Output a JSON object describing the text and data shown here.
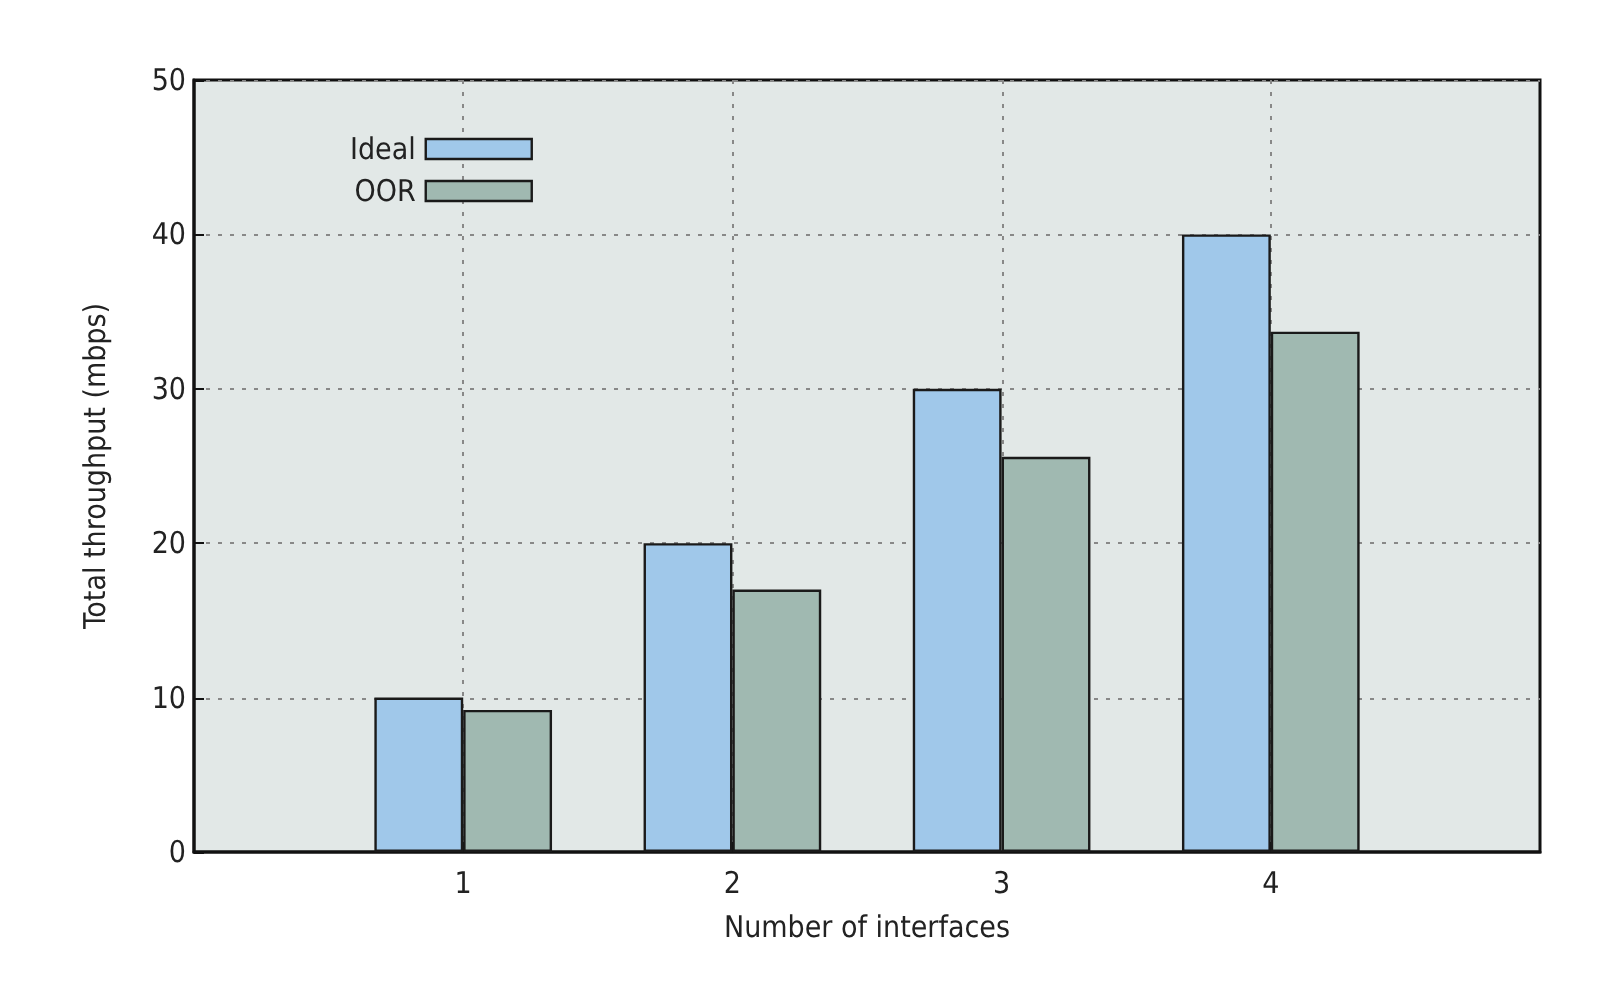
{
  "chart_data": {
    "type": "bar",
    "xlabel": "Number of interfaces",
    "ylabel": "Total throughput (mbps)",
    "x": [
      1,
      2,
      3,
      4
    ],
    "xlim": [
      0,
      5
    ],
    "xticks": [
      1,
      2,
      3,
      4
    ],
    "ylim": [
      0,
      50
    ],
    "yticks": [
      0,
      10,
      20,
      30,
      40,
      50
    ],
    "series": [
      {
        "name": "Ideal",
        "color": "#a0c8ea",
        "values": [
          10,
          20,
          30,
          40
        ]
      },
      {
        "name": "OOR",
        "color": "#a0b9b1",
        "values": [
          9.2,
          17,
          25.6,
          33.7
        ]
      }
    ],
    "grid": true,
    "legend": "top left"
  }
}
